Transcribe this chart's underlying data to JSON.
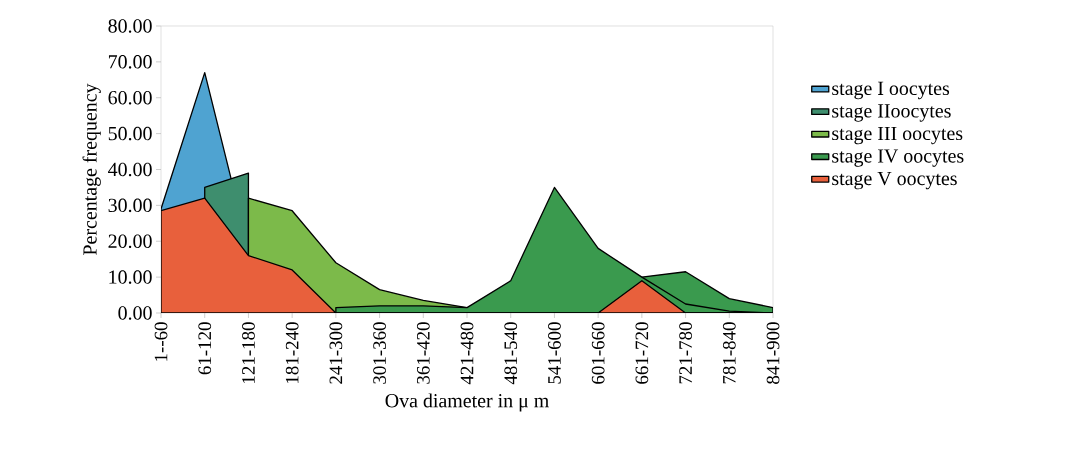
{
  "chart_data": {
    "type": "area",
    "xlabel": "Ova diameter in μ m",
    "ylabel": "Percentage frequency",
    "categories": [
      "1--60",
      "61-120",
      "121-180",
      "181-240",
      "241-300",
      "301-360",
      "361-420",
      "421-480",
      "481-540",
      "541-600",
      "601-660",
      "661-720",
      "721-780",
      "781-840",
      "841-900"
    ],
    "series": [
      {
        "name": "stage I oocytes",
        "color": "#4fa3d1",
        "values": [
          29,
          67,
          18,
          null,
          null,
          null,
          null,
          null,
          null,
          null,
          null,
          null,
          null,
          null,
          null
        ]
      },
      {
        "name": "stage IIoocytes",
        "color": "#3e8e6e",
        "values": [
          null,
          35,
          39,
          null,
          null,
          null,
          null,
          null,
          null,
          null,
          null,
          null,
          null,
          null,
          null
        ]
      },
      {
        "name": "stage III oocytes",
        "color": "#7cba4a",
        "values": [
          null,
          null,
          32,
          28.5,
          14,
          6.5,
          3.5,
          1.5,
          null,
          null,
          null,
          null,
          null,
          null,
          null
        ]
      },
      {
        "color": "#3a9a4e",
        "values": [
          null,
          null,
          null,
          null,
          null,
          null,
          null,
          null,
          null,
          null,
          null,
          10,
          11.5,
          4,
          1.5
        ]
      },
      {
        "name": "stage IV oocytes",
        "color": "#3a9a4e",
        "values": [
          null,
          null,
          null,
          null,
          1.5,
          2,
          2,
          1.5,
          9,
          35,
          18,
          10,
          2.5,
          0.5,
          0
        ]
      },
      {
        "name": "stage V oocytes",
        "color": "#e8603c",
        "values": [
          28.5,
          32,
          16,
          12,
          0,
          0,
          0,
          0,
          0,
          0,
          0,
          9,
          0,
          0,
          0
        ]
      }
    ],
    "ylim": [
      0,
      80
    ],
    "yticks": [
      {
        "value": 0,
        "label": "0.00"
      },
      {
        "value": 10,
        "label": "10.00"
      },
      {
        "value": 20,
        "label": "20.00"
      },
      {
        "value": 30,
        "label": "30.00"
      },
      {
        "value": 40,
        "label": "40.00"
      },
      {
        "value": 50,
        "label": "50.00"
      },
      {
        "value": 60,
        "label": "60.00"
      },
      {
        "value": 70,
        "label": "70.00"
      },
      {
        "value": 80,
        "label": "80.00"
      }
    ],
    "legend": "right",
    "grid": false
  }
}
